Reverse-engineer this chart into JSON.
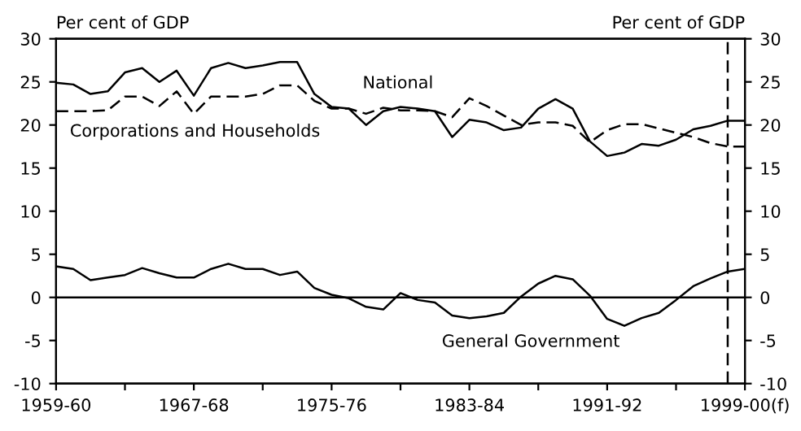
{
  "chart_data": {
    "type": "line",
    "ylabel": "Per cent of GDP",
    "y2label": "Per cent of GDP",
    "categories": [
      "1959-60",
      null,
      null,
      null,
      null,
      null,
      null,
      null,
      "1967-68",
      null,
      null,
      null,
      null,
      null,
      null,
      null,
      "1975-76",
      null,
      null,
      null,
      null,
      null,
      null,
      null,
      "1983-84",
      null,
      null,
      null,
      null,
      null,
      null,
      null,
      "1991-92",
      null,
      null,
      null,
      null,
      null,
      null,
      null,
      "1999-00(f)"
    ],
    "series": [
      {
        "name": "National",
        "color": "#000000",
        "line_style": "solid",
        "values": [
          24.9,
          24.7,
          23.6,
          23.9,
          26.1,
          26.6,
          25.0,
          26.3,
          23.4,
          26.6,
          27.2,
          26.6,
          26.9,
          27.3,
          27.3,
          23.6,
          22.1,
          21.9,
          20.0,
          21.6,
          22.1,
          21.9,
          21.6,
          18.6,
          20.6,
          20.3,
          19.4,
          19.7,
          21.9,
          23.0,
          21.9,
          18.1,
          16.4,
          16.8,
          17.8,
          17.6,
          18.3,
          19.5,
          19.9,
          20.5,
          20.5
        ]
      },
      {
        "name": "Corporations and Households",
        "color": "#000000",
        "line_style": "dashed",
        "values": [
          21.6,
          21.6,
          21.6,
          21.7,
          23.3,
          23.3,
          22.2,
          23.9,
          21.3,
          23.3,
          23.3,
          23.3,
          23.6,
          24.6,
          24.6,
          22.8,
          21.9,
          21.9,
          21.3,
          22.0,
          21.7,
          21.7,
          21.6,
          20.9,
          23.1,
          22.2,
          21.1,
          20.0,
          20.3,
          20.3,
          19.9,
          18.0,
          19.4,
          20.1,
          20.1,
          19.6,
          19.1,
          18.6,
          17.9,
          17.5,
          17.5
        ]
      },
      {
        "name": "General Government",
        "color": "#000000",
        "line_style": "solid",
        "values": [
          3.6,
          3.3,
          2.0,
          2.3,
          2.6,
          3.4,
          2.8,
          2.3,
          2.3,
          3.3,
          3.9,
          3.3,
          3.3,
          2.6,
          3.0,
          1.1,
          0.3,
          -0.1,
          -1.1,
          -1.4,
          0.5,
          -0.3,
          -0.6,
          -2.1,
          -2.4,
          -2.2,
          -1.8,
          0.1,
          1.6,
          2.5,
          2.1,
          0.2,
          -2.5,
          -3.3,
          -2.4,
          -1.8,
          -0.3,
          1.3,
          2.2,
          3.0,
          3.3
        ]
      }
    ],
    "ylim": [
      -10,
      30
    ],
    "yticks": [
      -10,
      -5,
      0,
      5,
      10,
      15,
      20,
      25,
      30
    ],
    "y2lim": [
      -10,
      30
    ],
    "y2ticks": [
      -10,
      -5,
      0,
      5,
      10,
      15,
      20,
      25,
      30
    ],
    "ref_lines": [
      {
        "axis": "y",
        "value": 0,
        "label": null,
        "color": "#000000",
        "line_style": "solid"
      }
    ],
    "grid": false,
    "legend": false,
    "marker": "none"
  }
}
